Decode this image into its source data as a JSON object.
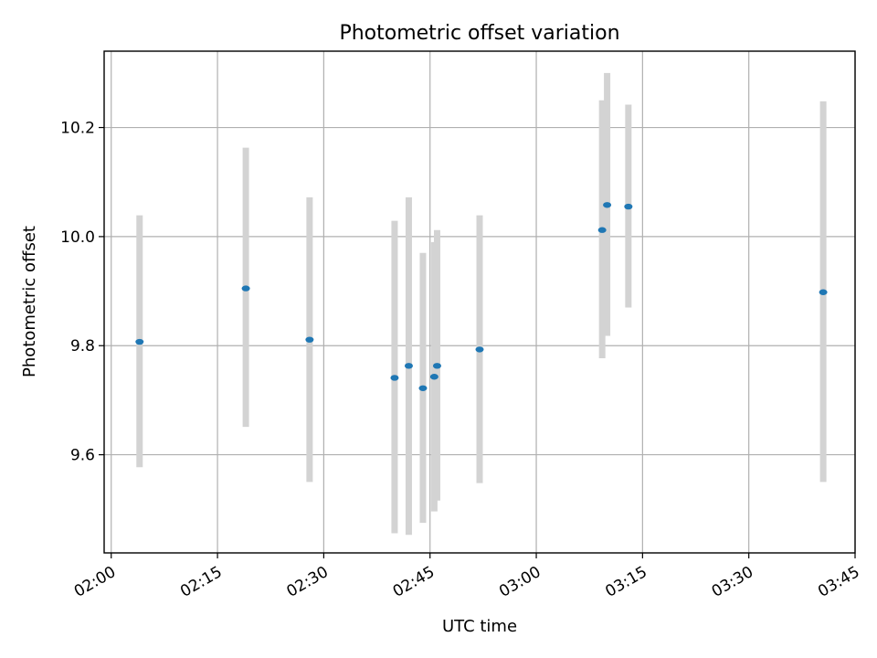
{
  "chart_data": {
    "type": "scatter",
    "title": "Photometric offset variation",
    "xlabel": "UTC time",
    "ylabel": "Photometric offset",
    "x_axis": {
      "kind": "time",
      "range": [
        "01:59",
        "03:45"
      ],
      "ticks": [
        "02:00",
        "02:15",
        "02:30",
        "02:45",
        "03:00",
        "03:15",
        "03:30",
        "03:45"
      ]
    },
    "y_axis": {
      "range": [
        9.42,
        10.34
      ],
      "ticks": [
        9.6,
        9.8,
        10.0,
        10.2
      ],
      "tick_labels": [
        "9.6",
        "9.8",
        "10.0",
        "10.2"
      ]
    },
    "grid": true,
    "colors": {
      "point": "#1f77b4",
      "error_bar": "#d3d3d3",
      "grid": "#b0b0b0"
    },
    "series": [
      {
        "points": [
          {
            "x": "02:04",
            "y": 9.807,
            "ylow": 9.577,
            "yhigh": 10.039
          },
          {
            "x": "02:19",
            "y": 9.905,
            "ylow": 9.651,
            "yhigh": 10.163
          },
          {
            "x": "02:28",
            "y": 9.811,
            "ylow": 9.55,
            "yhigh": 10.072
          },
          {
            "x": "02:40",
            "y": 9.741,
            "ylow": 9.456,
            "yhigh": 10.029
          },
          {
            "x": "02:42",
            "y": 9.763,
            "ylow": 9.453,
            "yhigh": 10.072
          },
          {
            "x": "02:44",
            "y": 9.722,
            "ylow": 9.475,
            "yhigh": 9.97
          },
          {
            "x": "02:45.6",
            "y": 9.743,
            "ylow": 9.496,
            "yhigh": 9.99
          },
          {
            "x": "02:46",
            "y": 9.763,
            "ylow": 9.516,
            "yhigh": 10.012
          },
          {
            "x": "02:52",
            "y": 9.793,
            "ylow": 9.548,
            "yhigh": 10.039
          },
          {
            "x": "03:09.3",
            "y": 10.012,
            "ylow": 9.777,
            "yhigh": 10.25
          },
          {
            "x": "03:10",
            "y": 10.058,
            "ylow": 9.818,
            "yhigh": 10.3
          },
          {
            "x": "03:13",
            "y": 10.055,
            "ylow": 9.87,
            "yhigh": 10.242
          },
          {
            "x": "03:40.5",
            "y": 9.898,
            "ylow": 9.55,
            "yhigh": 10.248
          }
        ]
      }
    ]
  }
}
